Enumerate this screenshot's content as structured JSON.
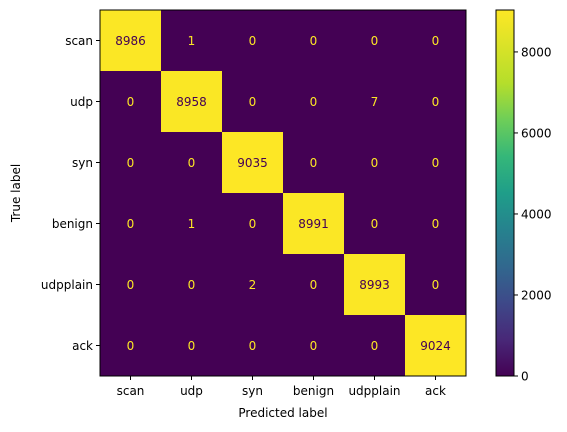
{
  "chart_data": {
    "type": "heatmap",
    "xlabel": "Predicted label",
    "ylabel": "True label",
    "x_categories": [
      "scan",
      "udp",
      "syn",
      "benign",
      "udpplain",
      "ack"
    ],
    "y_categories": [
      "scan",
      "udp",
      "syn",
      "benign",
      "udpplain",
      "ack"
    ],
    "values": [
      [
        8986,
        1,
        0,
        0,
        0,
        0
      ],
      [
        0,
        8958,
        0,
        0,
        7,
        0
      ],
      [
        0,
        0,
        9035,
        0,
        0,
        0
      ],
      [
        0,
        1,
        0,
        8991,
        0,
        0
      ],
      [
        0,
        0,
        2,
        0,
        8993,
        0
      ],
      [
        0,
        0,
        0,
        0,
        0,
        9024
      ]
    ],
    "colormap": "viridis",
    "colorbar": {
      "range": [
        0,
        9035
      ],
      "ticks": [
        0,
        2000,
        4000,
        6000,
        8000
      ],
      "tick_labels": [
        "0",
        "2000",
        "4000",
        "6000",
        "8000"
      ]
    },
    "colors": {
      "low": "#440154",
      "high": "#fde725",
      "text_on_low": "#fde725",
      "text_on_high": "#440154"
    }
  }
}
